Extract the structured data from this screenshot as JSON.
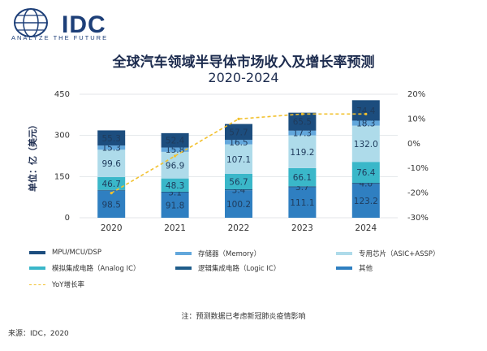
{
  "brand": {
    "name": "IDC",
    "tagline": "ANALYZE THE FUTURE"
  },
  "chart_data": {
    "type": "bar",
    "stacked": true,
    "title": "全球汽车领域半导体市场收入及增长率预测",
    "subtitle": "2020-2024",
    "ylabel": "单位：亿（美元）",
    "categories": [
      "2020",
      "2021",
      "2022",
      "2023",
      "2024"
    ],
    "ylim": [
      0,
      450
    ],
    "yticks": [
      0,
      150,
      300,
      450
    ],
    "y2lim": [
      -30,
      20
    ],
    "y2ticks": [
      "20%",
      "10%",
      "0%",
      "-10%",
      "-20%",
      "-30%"
    ],
    "y2tick_values": [
      20,
      10,
      0,
      -10,
      -20,
      -30
    ],
    "series": [
      {
        "name": "其他",
        "color": "#2f7fc1",
        "values": [
          98.5,
          91.8,
          100.2,
          111.1,
          123.2
        ],
        "labels": [
          "98.5",
          "91.8",
          "100.2",
          "111.1",
          "123.2"
        ]
      },
      {
        "name": "逻辑集成电路（Logic IC）",
        "color": "#1f5c8a",
        "values": [
          3.0,
          3.1,
          3.4,
          3.7,
          4.0
        ],
        "labels": [
          "",
          "3.1",
          "3.4",
          "3.7",
          "4.0"
        ]
      },
      {
        "name": "模拟集成电路（Analog IC）",
        "color": "#3ab7c9",
        "values": [
          46.7,
          48.3,
          56.7,
          66.1,
          76.4
        ],
        "labels": [
          "46.7",
          "48.3",
          "56.7",
          "66.1",
          "76.4"
        ]
      },
      {
        "name": "专用芯片（ASIC+ASSP）",
        "color": "#aedbea",
        "values": [
          99.6,
          96.9,
          107.1,
          119.2,
          132.0
        ],
        "labels": [
          "99.6",
          "96.9",
          "107.1",
          "119.2",
          "132.0"
        ]
      },
      {
        "name": "存储器（Memory）",
        "color": "#62a7dc",
        "values": [
          15.3,
          15.8,
          16.5,
          17.3,
          18.3
        ],
        "labels": [
          "15.3",
          "15.8",
          "16.5",
          "17.3",
          "18.3"
        ]
      },
      {
        "name": "MPU/MCU/DSP",
        "color": "#1c4d7e",
        "values": [
          55.3,
          52.4,
          57.7,
          65.5,
          74.4
        ],
        "labels": [
          "55.3",
          "52.4",
          "57.7",
          "65.5",
          "74.4"
        ]
      }
    ],
    "line": {
      "name": "YoY增长率",
      "color": "#f2c12e",
      "values": [
        -20,
        -5,
        10,
        12,
        12
      ]
    }
  },
  "legend": [
    {
      "label": "MPU/MCU/DSP",
      "color": "#1c4d7e"
    },
    {
      "label": "存储器（Memory）",
      "color": "#62a7dc"
    },
    {
      "label": "专用芯片（ASIC+ASSP）",
      "color": "#aedbea"
    },
    {
      "label": "模拟集成电路（Analog IC）",
      "color": "#3ab7c9"
    },
    {
      "label": "逻辑集成电路（Logic IC）",
      "color": "#1f5c8a"
    },
    {
      "label": "其他",
      "color": "#2f7fc1"
    },
    {
      "label": "YoY增长率",
      "color": "#f2c12e"
    }
  ],
  "note": "注：预测数据已考虑新冠肺炎疫情影响",
  "source": "来源：IDC，2020"
}
